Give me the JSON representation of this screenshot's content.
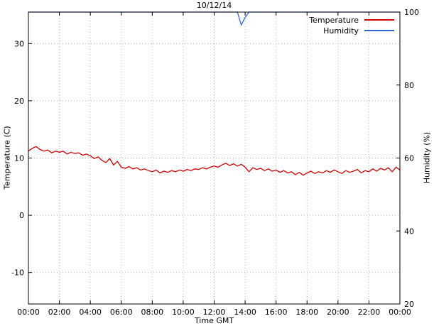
{
  "title": "10/12/14",
  "axes": {
    "x_label": "Time GMT",
    "x_ticks": [
      "00:00",
      "02:00",
      "04:00",
      "06:00",
      "08:00",
      "10:00",
      "12:00",
      "14:00",
      "16:00",
      "18:00",
      "20:00",
      "22:00",
      "00:00"
    ],
    "y_left_label": "Temperature (C)",
    "y_left_ticks": [
      -10,
      0,
      10,
      20,
      30
    ],
    "y_right_label": "Humidity (%)",
    "y_right_ticks": [
      20,
      40,
      60,
      80,
      100
    ]
  },
  "chart_data": {
    "type": "line",
    "title": "10/12/14",
    "xlabel": "Time GMT",
    "ylabel_left": "Temperature (C)",
    "ylabel_right": "Humidity (%)",
    "x_range_hours": [
      0,
      24
    ],
    "x_step_hours": 0.25,
    "y_left_range": [
      -15.5,
      35.5
    ],
    "y_right_range": [
      20,
      100
    ],
    "grid": true,
    "legend_position": "top-right",
    "grid_color": "#b8b8b8",
    "series": [
      {
        "name": "Temperature",
        "axis": "left",
        "color": "#cc0000",
        "values": [
          11.2,
          11.7,
          12.0,
          11.5,
          11.2,
          11.4,
          10.9,
          11.2,
          11.0,
          11.2,
          10.7,
          11.0,
          10.8,
          10.9,
          10.5,
          10.7,
          10.4,
          9.9,
          10.2,
          9.6,
          9.2,
          9.9,
          8.8,
          9.4,
          8.4,
          8.2,
          8.5,
          8.1,
          8.3,
          7.9,
          8.1,
          7.8,
          7.6,
          7.9,
          7.4,
          7.7,
          7.5,
          7.8,
          7.6,
          7.9,
          7.7,
          8.0,
          7.8,
          8.1,
          8.0,
          8.3,
          8.1,
          8.4,
          8.6,
          8.4,
          8.8,
          9.1,
          8.7,
          9.0,
          8.6,
          8.9,
          8.4,
          7.6,
          8.3,
          8.0,
          8.2,
          7.8,
          8.1,
          7.7,
          7.9,
          7.5,
          7.8,
          7.4,
          7.6,
          7.1,
          7.5,
          7.0,
          7.4,
          7.7,
          7.3,
          7.6,
          7.4,
          7.8,
          7.5,
          7.9,
          7.6,
          7.3,
          7.8,
          7.5,
          7.7,
          8.0,
          7.4,
          7.8,
          7.6,
          8.1,
          7.7,
          8.2,
          7.9,
          8.3,
          7.6,
          8.4,
          7.9
        ]
      },
      {
        "name": "Humidity",
        "axis": "right",
        "color": "#3366cc",
        "values": [
          100,
          100,
          100,
          100,
          100,
          100,
          100,
          100,
          100,
          100,
          100,
          100,
          100,
          100,
          100,
          100,
          100,
          100,
          100,
          100,
          100,
          100,
          100,
          100,
          100,
          100,
          100,
          100,
          100,
          100,
          100,
          100,
          100,
          100,
          100,
          100,
          100,
          100,
          100,
          100,
          100,
          100,
          100,
          100,
          100,
          100,
          100,
          100,
          100,
          100,
          100,
          100,
          100,
          100,
          100,
          96.5,
          98.5,
          100,
          100,
          100,
          100,
          100,
          100,
          100,
          100,
          100,
          100,
          100,
          100,
          100,
          100,
          100,
          100,
          100,
          100,
          100,
          100,
          100,
          100,
          100,
          100,
          100,
          100,
          100,
          100,
          100,
          100,
          100,
          100,
          100,
          100,
          100,
          100,
          100,
          100,
          100,
          100
        ]
      }
    ]
  }
}
